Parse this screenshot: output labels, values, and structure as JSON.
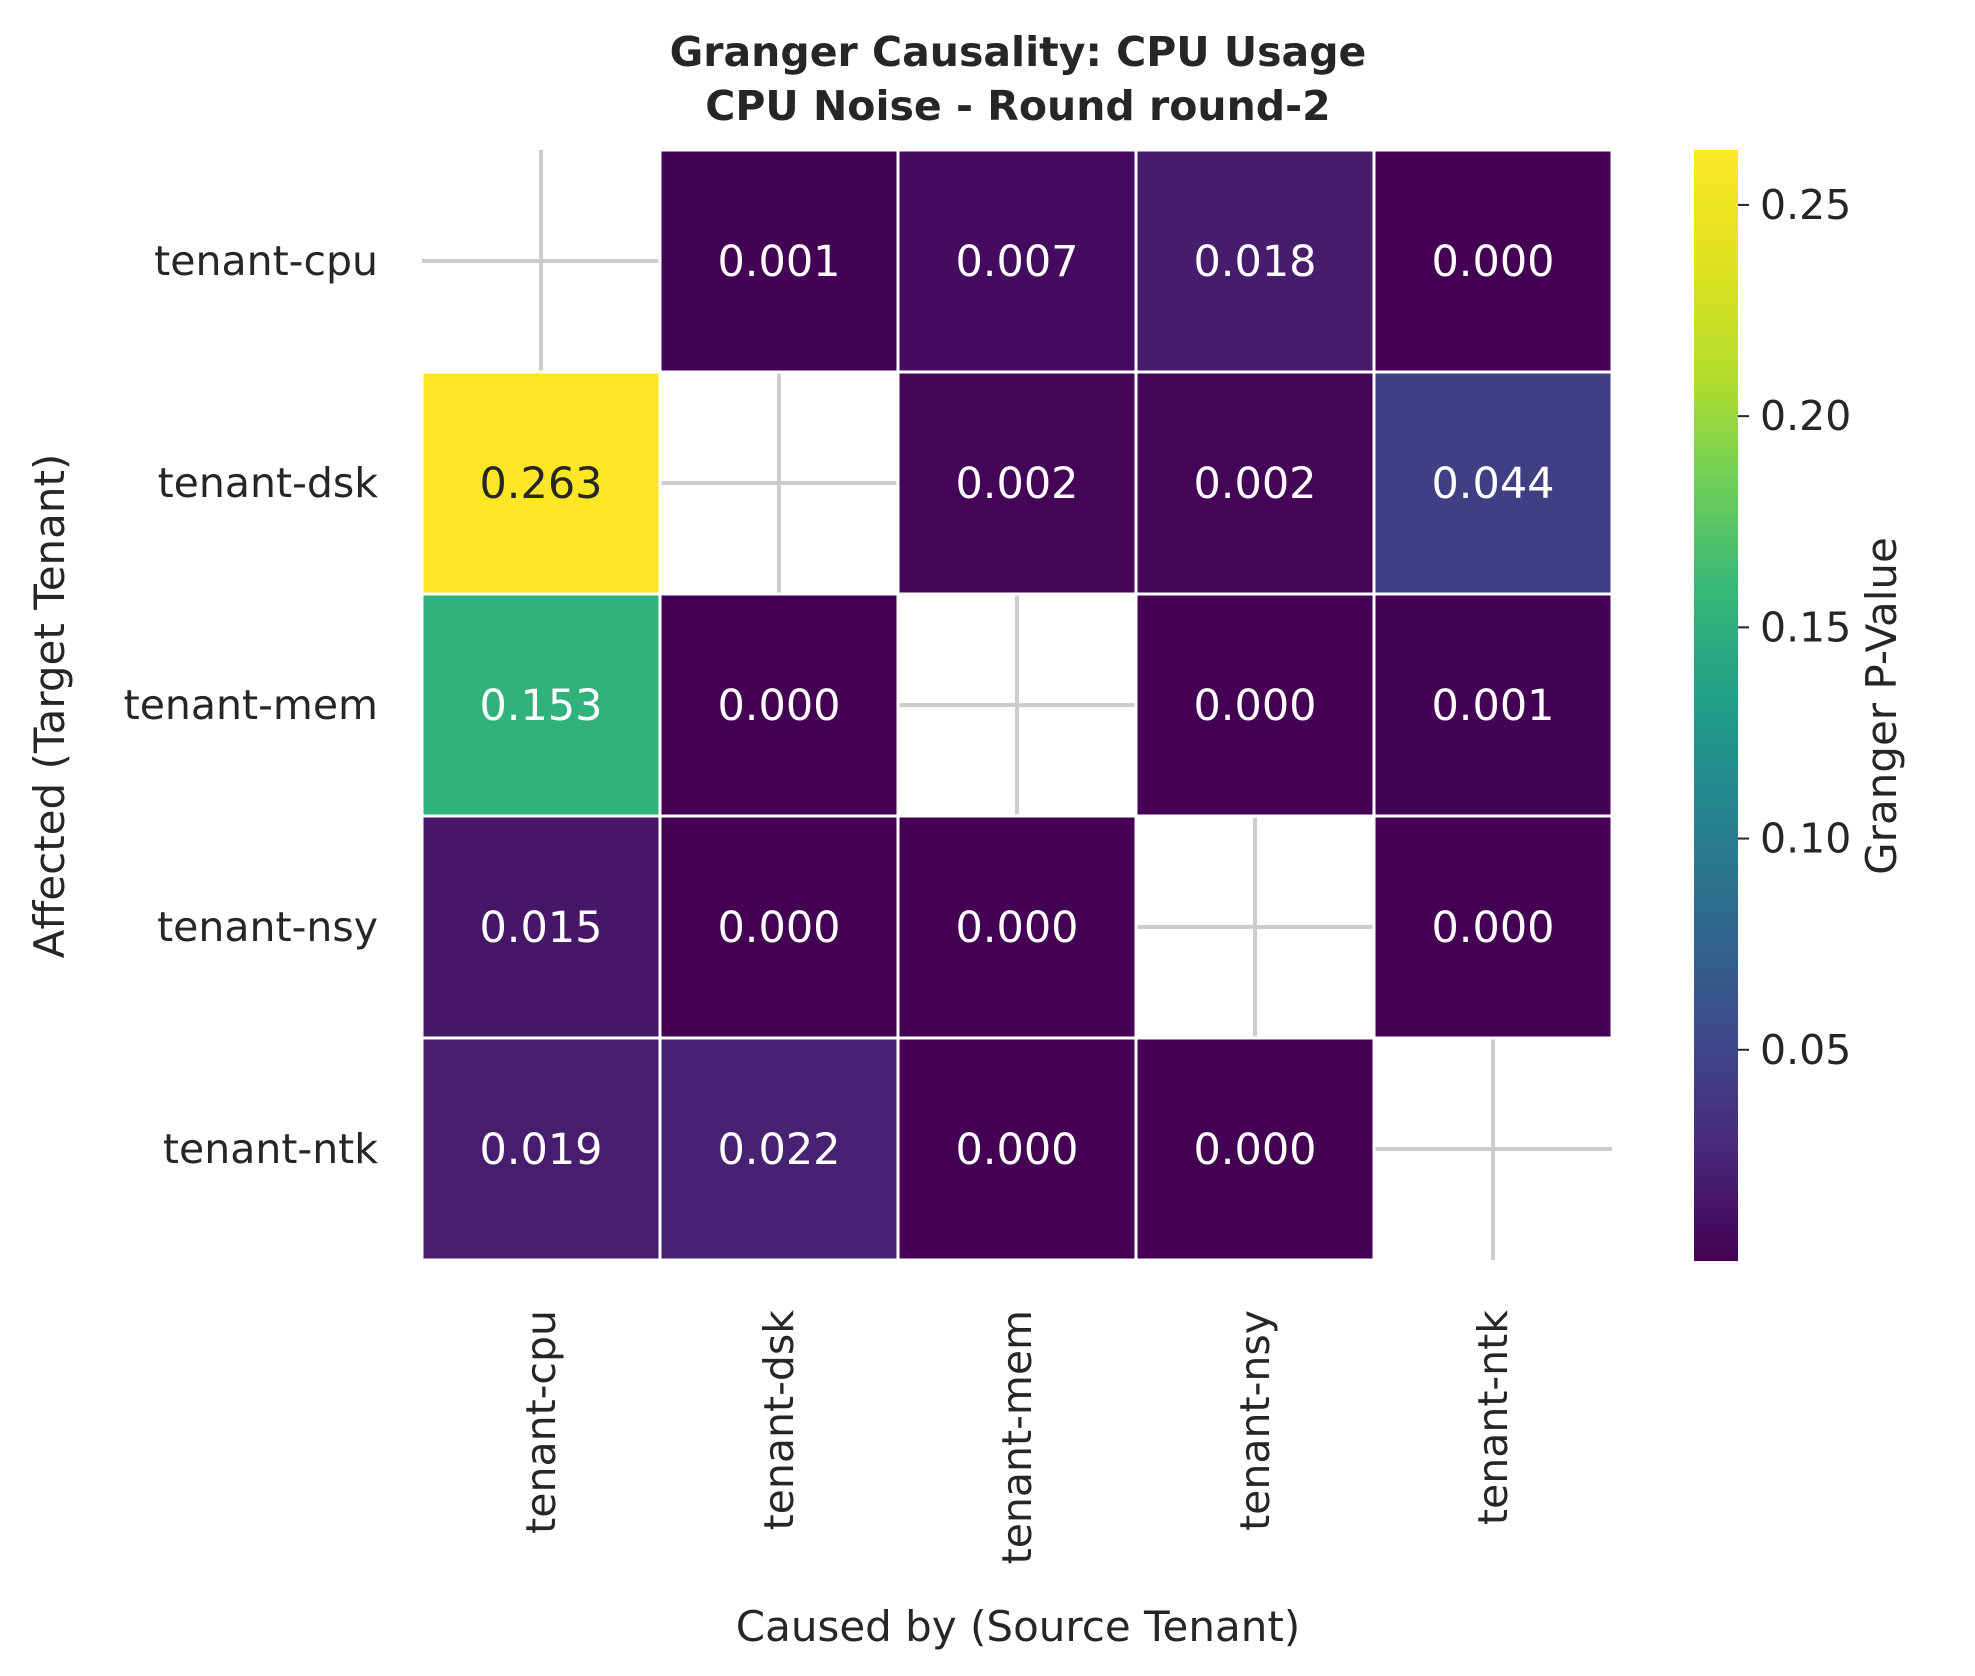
{
  "chart_data": {
    "type": "heatmap",
    "title": "Granger Causality: CPU Usage",
    "subtitle": "CPU Noise - Round round-2",
    "xlabel": "Caused by (Source Tenant)",
    "ylabel": "Affected (Target Tenant)",
    "x_categories": [
      "tenant-cpu",
      "tenant-dsk",
      "tenant-mem",
      "tenant-nsy",
      "tenant-ntk"
    ],
    "y_categories": [
      "tenant-cpu",
      "tenant-dsk",
      "tenant-mem",
      "tenant-nsy",
      "tenant-ntk"
    ],
    "values": [
      [
        null,
        0.001,
        0.007,
        0.018,
        0.0
      ],
      [
        0.263,
        null,
        0.002,
        0.002,
        0.044
      ],
      [
        0.153,
        0.0,
        null,
        0.0,
        0.001
      ],
      [
        0.015,
        0.0,
        0.0,
        null,
        0.0
      ],
      [
        0.019,
        0.022,
        0.0,
        0.0,
        null
      ]
    ],
    "cell_labels": [
      [
        "",
        "0.001",
        "0.007",
        "0.018",
        "0.000"
      ],
      [
        "0.263",
        "",
        "0.002",
        "0.002",
        "0.044"
      ],
      [
        "0.153",
        "0.000",
        "",
        "0.000",
        "0.001"
      ],
      [
        "0.015",
        "0.000",
        "0.000",
        "",
        "0.000"
      ],
      [
        "0.019",
        "0.022",
        "0.000",
        "0.000",
        ""
      ]
    ],
    "colormap": "viridis",
    "colorbar": {
      "label": "Granger P-Value",
      "range": [
        0.0,
        0.263
      ],
      "ticks": [
        0.05,
        0.1,
        0.15,
        0.2,
        0.25
      ],
      "tick_labels": [
        "0.05",
        "0.10",
        "0.15",
        "0.20",
        "0.25"
      ]
    },
    "grid": true,
    "missing_cells": "diagonal"
  }
}
